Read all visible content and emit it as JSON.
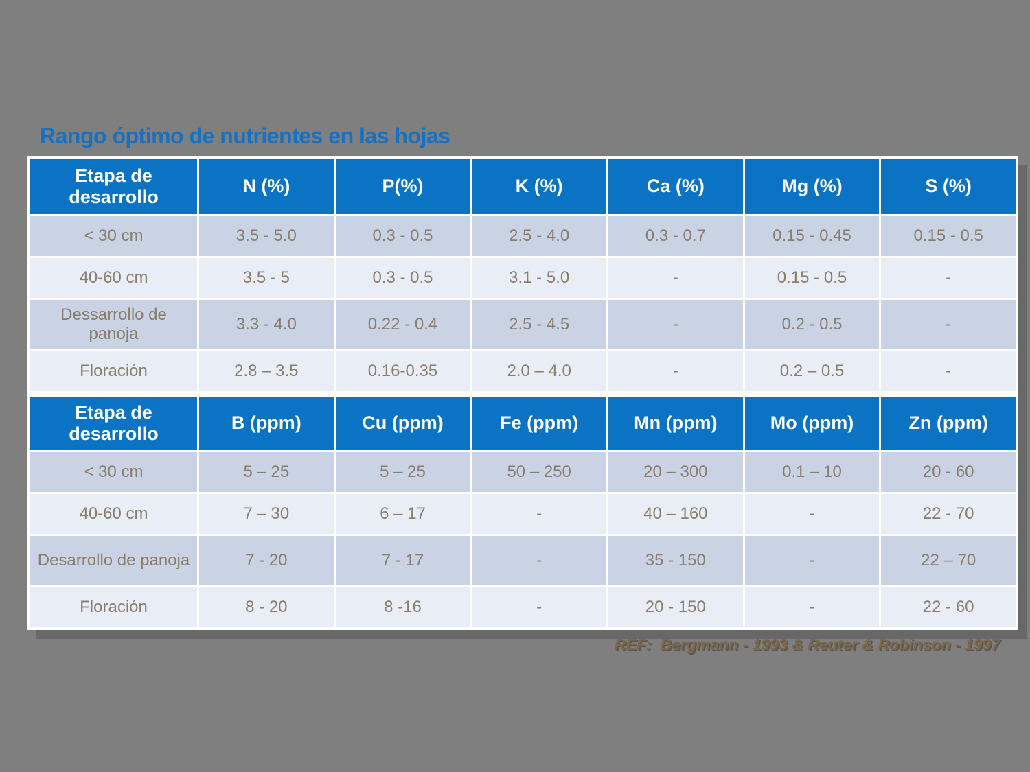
{
  "title": "Rango óptimo de nutrientes en las hojas",
  "reference": "REF:  Bergmann - 1993 & Reuter & Robinson - 1997",
  "colors": {
    "background": "#7f7f7f",
    "header_blue": "#0b73c4",
    "row_dark": "#c9d3e4",
    "row_light": "#e9edf5",
    "cell_text": "#8a7d6b",
    "title_blue": "#1372c6",
    "reference_text": "#7d684a"
  },
  "t1": {
    "headers": [
      "Etapa de desarrollo",
      "N (%)",
      "P(%)",
      "K (%)",
      "Ca (%)",
      "Mg (%)",
      "S (%)"
    ],
    "rows": [
      {
        "label": "< 30 cm",
        "cells": [
          "3.5 - 5.0",
          "0.3 - 0.5",
          "2.5 - 4.0",
          "0.3 - 0.7",
          "0.15 - 0.45",
          "0.15 - 0.5"
        ]
      },
      {
        "label": "40-60 cm",
        "cells": [
          "3.5 - 5",
          "0.3 - 0.5",
          "3.1 - 5.0",
          "-",
          "0.15 - 0.5",
          "-"
        ]
      },
      {
        "label": "Dessarrollo de panoja",
        "cells": [
          "3.3 - 4.0",
          "0.22 - 0.4",
          "2.5 - 4.5",
          "-",
          "0.2 - 0.5",
          "-"
        ]
      },
      {
        "label": "Floración",
        "cells": [
          "2.8 – 3.5",
          "0.16-0.35",
          "2.0 – 4.0",
          "-",
          "0.2 – 0.5",
          "-"
        ]
      }
    ]
  },
  "t2": {
    "headers": [
      "Etapa de desarrollo",
      "B (ppm)",
      "Cu (ppm)",
      "Fe (ppm)",
      "Mn (ppm)",
      "Mo (ppm)",
      "Zn (ppm)"
    ],
    "rows": [
      {
        "label": "< 30 cm",
        "cells": [
          "5 – 25",
          "5 – 25",
          "50 – 250",
          "20 – 300",
          "0.1 – 10",
          "20 - 60"
        ]
      },
      {
        "label": "40-60 cm",
        "cells": [
          "7 – 30",
          "6 – 17",
          "-",
          "40 – 160",
          "-",
          "22 - 70"
        ]
      },
      {
        "label": "Desarrollo de panoja",
        "cells": [
          "7 - 20",
          "7 - 17",
          "-",
          "35 - 150",
          "-",
          "22 – 70"
        ]
      },
      {
        "label": "Floración",
        "cells": [
          "8 - 20",
          "8 -16",
          "-",
          "20 - 150",
          "-",
          "22 - 60"
        ]
      }
    ]
  }
}
